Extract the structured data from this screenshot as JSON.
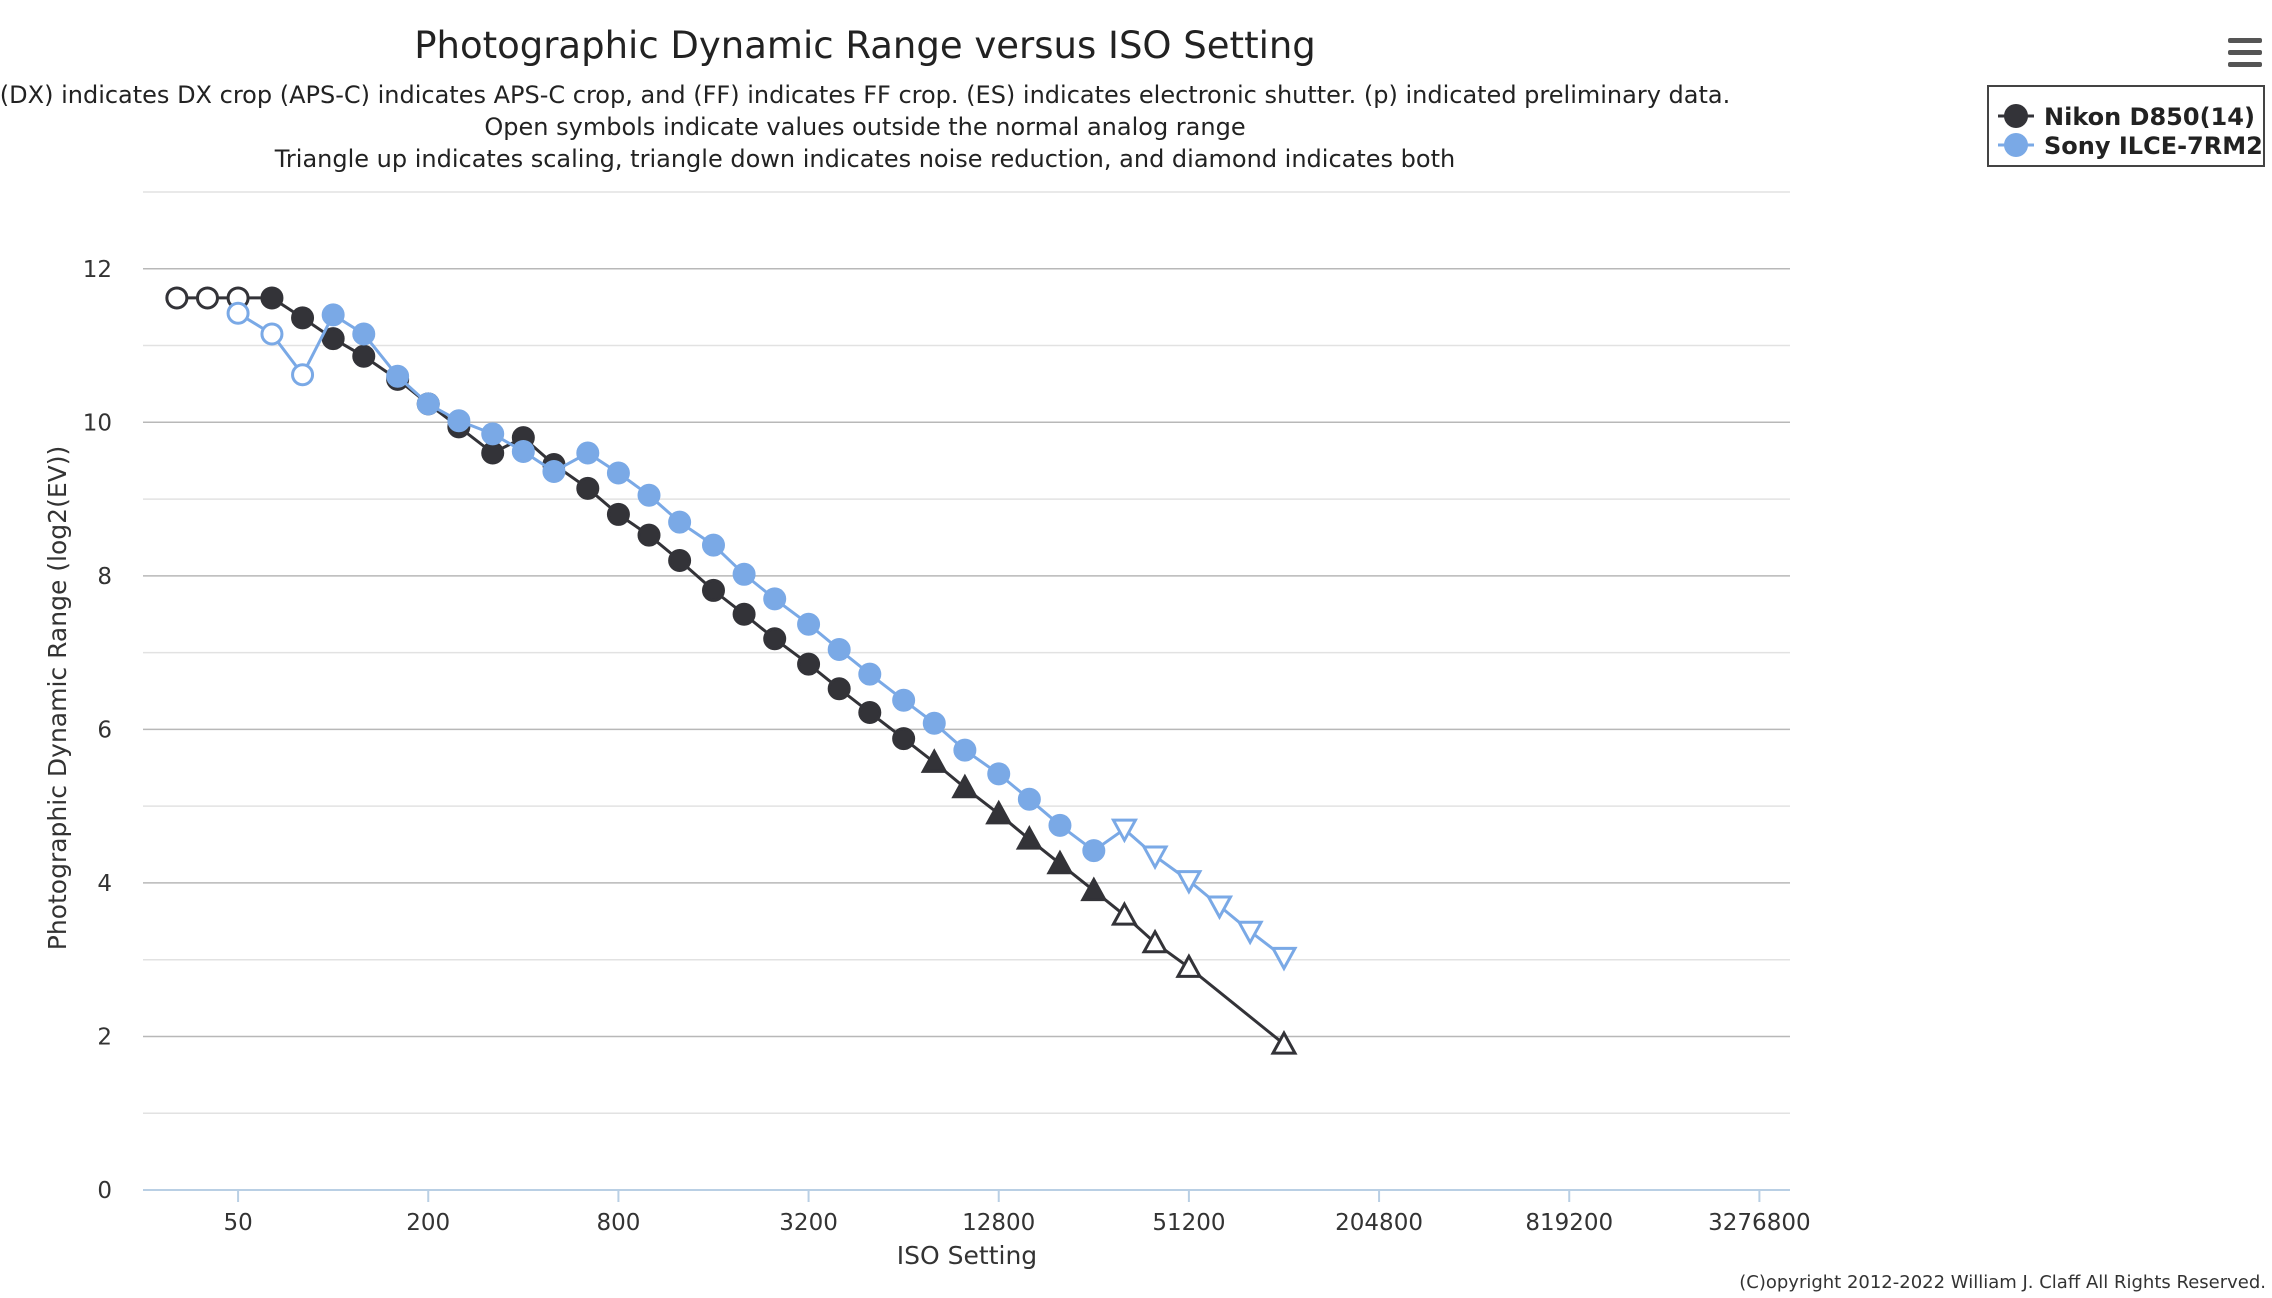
{
  "chart_data": {
    "type": "line",
    "title": "Photographic Dynamic Range versus ISO Setting",
    "subtitle": [
      "(DX) indicates DX crop (APS-C) indicates APS-C crop, and (FF) indicates FF crop. (ES) indicates electronic shutter. (p) indicated preliminary data.",
      "Open symbols indicate values outside the normal analog range",
      "Triangle up indicates scaling, triangle down indicates noise reduction, and diamond indicates both"
    ],
    "xlabel": "ISO Setting",
    "ylabel": "Photographic Dynamic Range (log2(EV))",
    "x_scale": "log2",
    "xlim": [
      25,
      4096000
    ],
    "ylim": [
      0,
      13
    ],
    "x_ticks": [
      {
        "value": 50,
        "label": "50"
      },
      {
        "value": 200,
        "label": "200"
      },
      {
        "value": 800,
        "label": "800"
      },
      {
        "value": 3200,
        "label": "3200"
      },
      {
        "value": 12800,
        "label": "12800"
      },
      {
        "value": 51200,
        "label": "51200"
      },
      {
        "value": 204800,
        "label": "204800"
      },
      {
        "value": 819200,
        "label": "819200"
      },
      {
        "value": 3276800,
        "label": "3276800"
      }
    ],
    "y_ticks": [
      0,
      2,
      4,
      6,
      8,
      10,
      12
    ],
    "grid": true,
    "legend_position": "top-right",
    "copyright": "(C)opyright 2012-2022 William J. Claff All Rights Reserved.",
    "series": [
      {
        "name": "Nikon D850(14)",
        "color": "#333338",
        "points": [
          {
            "x": 32,
            "y": 11.62,
            "marker": "circle",
            "open": true
          },
          {
            "x": 40,
            "y": 11.62,
            "marker": "circle",
            "open": true
          },
          {
            "x": 50,
            "y": 11.62,
            "marker": "circle",
            "open": true
          },
          {
            "x": 64,
            "y": 11.62,
            "marker": "circle",
            "open": false
          },
          {
            "x": 80,
            "y": 11.36,
            "marker": "circle",
            "open": false
          },
          {
            "x": 100,
            "y": 11.09,
            "marker": "circle",
            "open": false
          },
          {
            "x": 125,
            "y": 10.86,
            "marker": "circle",
            "open": false
          },
          {
            "x": 160,
            "y": 10.56,
            "marker": "circle",
            "open": false
          },
          {
            "x": 200,
            "y": 10.24,
            "marker": "circle",
            "open": false
          },
          {
            "x": 250,
            "y": 9.94,
            "marker": "circle",
            "open": false
          },
          {
            "x": 320,
            "y": 9.6,
            "marker": "circle",
            "open": false
          },
          {
            "x": 400,
            "y": 9.8,
            "marker": "circle",
            "open": false
          },
          {
            "x": 500,
            "y": 9.45,
            "marker": "circle",
            "open": false
          },
          {
            "x": 640,
            "y": 9.14,
            "marker": "circle",
            "open": false
          },
          {
            "x": 800,
            "y": 8.8,
            "marker": "circle",
            "open": false
          },
          {
            "x": 1000,
            "y": 8.53,
            "marker": "circle",
            "open": false
          },
          {
            "x": 1250,
            "y": 8.2,
            "marker": "circle",
            "open": false
          },
          {
            "x": 1600,
            "y": 7.81,
            "marker": "circle",
            "open": false
          },
          {
            "x": 2000,
            "y": 7.5,
            "marker": "circle",
            "open": false
          },
          {
            "x": 2500,
            "y": 7.18,
            "marker": "circle",
            "open": false
          },
          {
            "x": 3200,
            "y": 6.85,
            "marker": "circle",
            "open": false
          },
          {
            "x": 4000,
            "y": 6.53,
            "marker": "circle",
            "open": false
          },
          {
            "x": 5000,
            "y": 6.22,
            "marker": "circle",
            "open": false
          },
          {
            "x": 6400,
            "y": 5.88,
            "marker": "circle",
            "open": false
          },
          {
            "x": 8000,
            "y": 5.57,
            "marker": "triangle-up",
            "open": false
          },
          {
            "x": 10000,
            "y": 5.24,
            "marker": "triangle-up",
            "open": false
          },
          {
            "x": 12800,
            "y": 4.9,
            "marker": "triangle-up",
            "open": false
          },
          {
            "x": 16000,
            "y": 4.57,
            "marker": "triangle-up",
            "open": false
          },
          {
            "x": 20000,
            "y": 4.25,
            "marker": "triangle-up",
            "open": false
          },
          {
            "x": 25600,
            "y": 3.9,
            "marker": "triangle-up",
            "open": false
          },
          {
            "x": 32000,
            "y": 3.58,
            "marker": "triangle-up",
            "open": true
          },
          {
            "x": 40000,
            "y": 3.22,
            "marker": "triangle-up",
            "open": true
          },
          {
            "x": 51200,
            "y": 2.9,
            "marker": "triangle-up",
            "open": true
          },
          {
            "x": 102400,
            "y": 1.9,
            "marker": "triangle-up",
            "open": true
          }
        ]
      },
      {
        "name": "Sony ILCE-7RM2",
        "color": "#7aa9e6",
        "points": [
          {
            "x": 50,
            "y": 11.42,
            "marker": "circle",
            "open": true
          },
          {
            "x": 64,
            "y": 11.15,
            "marker": "circle",
            "open": true
          },
          {
            "x": 80,
            "y": 10.62,
            "marker": "circle",
            "open": true
          },
          {
            "x": 100,
            "y": 11.4,
            "marker": "circle",
            "open": false
          },
          {
            "x": 125,
            "y": 11.15,
            "marker": "circle",
            "open": false
          },
          {
            "x": 160,
            "y": 10.6,
            "marker": "circle",
            "open": false
          },
          {
            "x": 200,
            "y": 10.24,
            "marker": "circle",
            "open": false
          },
          {
            "x": 250,
            "y": 10.02,
            "marker": "circle",
            "open": false
          },
          {
            "x": 320,
            "y": 9.85,
            "marker": "circle",
            "open": false
          },
          {
            "x": 400,
            "y": 9.62,
            "marker": "circle",
            "open": false
          },
          {
            "x": 500,
            "y": 9.36,
            "marker": "circle",
            "open": false
          },
          {
            "x": 640,
            "y": 9.6,
            "marker": "circle",
            "open": false
          },
          {
            "x": 800,
            "y": 9.34,
            "marker": "circle",
            "open": false
          },
          {
            "x": 1000,
            "y": 9.05,
            "marker": "circle",
            "open": false
          },
          {
            "x": 1250,
            "y": 8.7,
            "marker": "circle",
            "open": false
          },
          {
            "x": 1600,
            "y": 8.4,
            "marker": "circle",
            "open": false
          },
          {
            "x": 2000,
            "y": 8.02,
            "marker": "circle",
            "open": false
          },
          {
            "x": 2500,
            "y": 7.7,
            "marker": "circle",
            "open": false
          },
          {
            "x": 3200,
            "y": 7.37,
            "marker": "circle",
            "open": false
          },
          {
            "x": 4000,
            "y": 7.04,
            "marker": "circle",
            "open": false
          },
          {
            "x": 5000,
            "y": 6.72,
            "marker": "circle",
            "open": false
          },
          {
            "x": 6400,
            "y": 6.38,
            "marker": "circle",
            "open": false
          },
          {
            "x": 8000,
            "y": 6.08,
            "marker": "circle",
            "open": false
          },
          {
            "x": 10000,
            "y": 5.73,
            "marker": "circle",
            "open": false
          },
          {
            "x": 12800,
            "y": 5.42,
            "marker": "circle",
            "open": false
          },
          {
            "x": 16000,
            "y": 5.09,
            "marker": "circle",
            "open": false
          },
          {
            "x": 20000,
            "y": 4.75,
            "marker": "circle",
            "open": false
          },
          {
            "x": 25600,
            "y": 4.42,
            "marker": "circle",
            "open": false
          },
          {
            "x": 32000,
            "y": 4.7,
            "marker": "triangle-down",
            "open": true
          },
          {
            "x": 40000,
            "y": 4.35,
            "marker": "triangle-down",
            "open": true
          },
          {
            "x": 51200,
            "y": 4.03,
            "marker": "triangle-down",
            "open": true
          },
          {
            "x": 64000,
            "y": 3.7,
            "marker": "triangle-down",
            "open": true
          },
          {
            "x": 80000,
            "y": 3.37,
            "marker": "triangle-down",
            "open": true
          },
          {
            "x": 102400,
            "y": 3.03,
            "marker": "triangle-down",
            "open": true
          }
        ]
      }
    ]
  },
  "menu": {
    "icon": "hamburger-menu-icon"
  }
}
